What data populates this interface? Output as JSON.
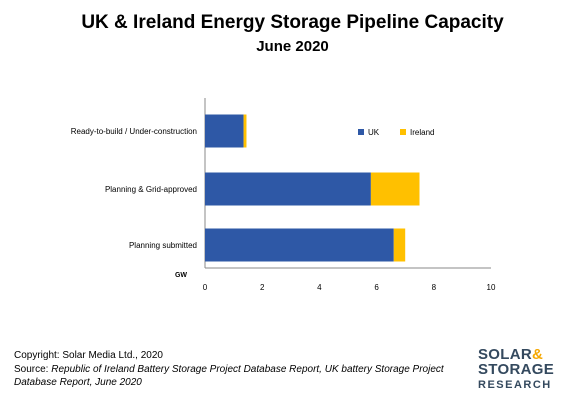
{
  "title": "UK & Ireland Energy Storage Pipeline Capacity",
  "subtitle": "June 2020",
  "chart_data": {
    "type": "bar",
    "orientation": "horizontal",
    "stacked": true,
    "categories": [
      "Ready-to-build / Under-construction",
      "Planning & Grid-approved",
      "Planning submitted"
    ],
    "series": [
      {
        "name": "UK",
        "values": [
          1.35,
          5.8,
          6.6
        ],
        "color": "#2E58A6"
      },
      {
        "name": "Ireland",
        "values": [
          0.1,
          1.7,
          0.4
        ],
        "color": "#FFC000"
      }
    ],
    "xlabel": "GW",
    "xlim": [
      0,
      10
    ],
    "xticks": [
      0,
      2,
      4,
      6,
      8,
      10
    ],
    "grid": false,
    "legend_position": "top-right"
  },
  "footer": {
    "copyright": "Copyright: Solar Media Ltd., 2020",
    "source_label": "Source: ",
    "source_text": "Republic of Ireland Battery Storage Project Database Report, UK battery Storage Project Database Report, June 2020"
  },
  "logo": {
    "line1": "SOLAR",
    "amp": "&",
    "line2": "STORAGE",
    "line3": "RESEARCH"
  }
}
